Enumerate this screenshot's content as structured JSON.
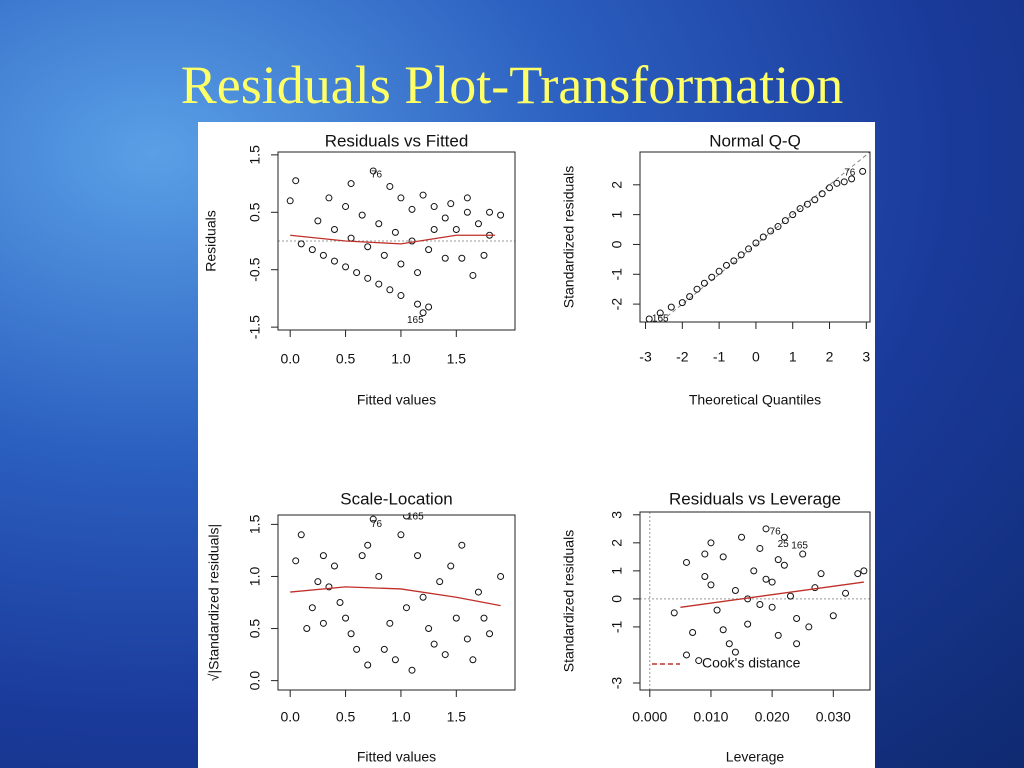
{
  "title": "Residuals Plot-Transformation",
  "chart_data": [
    {
      "type": "scatter",
      "title": "Residuals vs Fitted",
      "xlabel": "Fitted values",
      "ylabel": "Residuals",
      "xlim": [
        -0.11,
        2.03
      ],
      "ylim": [
        -1.55,
        1.55
      ],
      "xticks": [
        {
          "value": 0,
          "label": "0.0"
        },
        0.5,
        {
          "value": 1,
          "label": "1.0"
        },
        1.5
      ],
      "yticks": [
        -1.5,
        -0.5,
        0.5,
        1.5
      ],
      "hline": 0,
      "x": [
        0.1,
        0.2,
        0.3,
        0.4,
        0.5,
        0.6,
        0.7,
        0.8,
        0.9,
        1.0,
        0.25,
        0.4,
        0.55,
        0.7,
        0.85,
        1.0,
        1.15,
        0.35,
        0.5,
        0.65,
        0.8,
        0.95,
        1.1,
        1.25,
        1.4,
        0.0,
        0.05,
        0.55,
        0.75,
        0.9,
        1.0,
        1.1,
        1.2,
        1.3,
        1.4,
        1.5,
        1.6,
        1.7,
        1.8,
        1.9,
        1.55,
        1.65,
        1.75,
        1.15,
        1.2,
        1.25,
        1.3,
        1.45,
        1.6,
        1.8
      ],
      "y": [
        -0.05,
        -0.15,
        -0.25,
        -0.35,
        -0.45,
        -0.55,
        -0.65,
        -0.75,
        -0.85,
        -0.95,
        0.35,
        0.2,
        0.05,
        -0.1,
        -0.25,
        -0.4,
        -0.55,
        0.75,
        0.6,
        0.45,
        0.3,
        0.15,
        0.0,
        -0.15,
        -0.3,
        0.7,
        1.05,
        1.0,
        1.22,
        0.95,
        0.75,
        0.55,
        0.8,
        0.6,
        0.4,
        0.2,
        0.5,
        0.3,
        0.1,
        0.45,
        -0.3,
        -0.6,
        -0.25,
        -1.1,
        -1.25,
        -1.15,
        0.2,
        0.65,
        0.75,
        0.5
      ],
      "smooth": {
        "color": "#c0302a",
        "x": [
          0,
          0.5,
          1.0,
          1.5,
          1.85
        ],
        "y": [
          0.1,
          0.0,
          -0.05,
          0.1,
          0.1
        ]
      },
      "point_labels": [
        {
          "text": "76",
          "x": 0.78,
          "y": 1.15
        },
        {
          "text": "165",
          "x": 1.13,
          "y": -1.38
        }
      ]
    },
    {
      "type": "scatter",
      "title": "Normal Q-Q",
      "xlabel": "Theoretical Quantiles",
      "ylabel": "Standardized residuals",
      "xlim": [
        -3.15,
        3.1
      ],
      "ylim": [
        -2.6,
        3.1
      ],
      "xticks": [
        -3,
        -2,
        -1,
        0,
        1,
        2,
        3
      ],
      "yticks": [
        -2,
        -1,
        0,
        1,
        2
      ],
      "diagonal": {
        "intercept": 0,
        "slope": 1
      },
      "x": [
        -2.9,
        -2.6,
        -2.3,
        -2.0,
        -1.8,
        -1.6,
        -1.4,
        -1.2,
        -1.0,
        -0.8,
        -0.6,
        -0.4,
        -0.2,
        0,
        0.2,
        0.4,
        0.6,
        0.8,
        1.0,
        1.2,
        1.4,
        1.6,
        1.8,
        2.0,
        2.2,
        2.4,
        2.6,
        2.9
      ],
      "y": [
        -2.5,
        -2.3,
        -2.1,
        -1.95,
        -1.75,
        -1.5,
        -1.3,
        -1.1,
        -0.9,
        -0.7,
        -0.55,
        -0.35,
        -0.15,
        0.05,
        0.25,
        0.45,
        0.6,
        0.8,
        1.0,
        1.2,
        1.35,
        1.5,
        1.7,
        1.9,
        2.05,
        2.1,
        2.2,
        2.45
      ],
      "point_labels": [
        {
          "text": "76",
          "x": 2.55,
          "y": 2.4
        },
        {
          "text": "165",
          "x": -2.6,
          "y": -2.5
        }
      ]
    },
    {
      "type": "scatter",
      "title": "Scale-Location",
      "xlabel": "Fitted values",
      "ylabel": "√|Standardized residuals|",
      "xlim": [
        -0.11,
        2.03
      ],
      "ylim": [
        -0.09,
        1.59
      ],
      "xticks": [
        {
          "value": 0,
          "label": "0.0"
        },
        0.5,
        {
          "value": 1,
          "label": "1.0"
        },
        1.5
      ],
      "yticks": [
        {
          "value": 0,
          "label": "0.0"
        },
        0.5,
        {
          "value": 1,
          "label": "1.0"
        },
        1.5
      ],
      "x": [
        0.05,
        0.1,
        0.15,
        0.2,
        0.25,
        0.3,
        0.35,
        0.4,
        0.45,
        0.5,
        0.55,
        0.6,
        0.65,
        0.7,
        0.75,
        0.8,
        0.85,
        0.9,
        0.95,
        1.0,
        1.05,
        1.1,
        1.15,
        1.2,
        1.25,
        1.3,
        1.35,
        1.4,
        1.45,
        1.5,
        1.55,
        1.6,
        1.65,
        1.7,
        1.75,
        1.8,
        1.9,
        0.7,
        1.05,
        0.3
      ],
      "y": [
        1.15,
        1.4,
        0.5,
        0.7,
        0.95,
        1.2,
        0.9,
        1.1,
        0.75,
        0.6,
        0.45,
        0.3,
        1.2,
        0.15,
        1.55,
        1.0,
        0.3,
        0.55,
        0.2,
        1.4,
        0.7,
        0.1,
        1.2,
        0.8,
        0.5,
        0.35,
        0.95,
        0.25,
        1.1,
        0.6,
        1.3,
        0.4,
        0.2,
        0.85,
        0.6,
        0.45,
        1.0,
        1.3,
        1.58,
        0.55
      ],
      "smooth": {
        "color": "#c0302a",
        "x": [
          0,
          0.5,
          1.0,
          1.5,
          1.9
        ],
        "y": [
          0.85,
          0.9,
          0.88,
          0.8,
          0.72
        ]
      },
      "point_labels": [
        {
          "text": "76",
          "x": 0.78,
          "y": 1.5
        },
        {
          "text": "165",
          "x": 1.13,
          "y": 1.57
        }
      ]
    },
    {
      "type": "scatter",
      "title": "Residuals vs Leverage",
      "xlabel": "Leverage",
      "ylabel": "Standardized residuals",
      "xlim": [
        -0.0016,
        0.036
      ],
      "ylim": [
        -3.25,
        3.1
      ],
      "xticks": [
        {
          "value": 0,
          "label": "0.000"
        },
        {
          "value": 0.01,
          "label": "0.010"
        },
        {
          "value": 0.02,
          "label": "0.020"
        },
        {
          "value": 0.03,
          "label": "0.030"
        }
      ],
      "yticks": [
        -3,
        -1,
        0,
        1,
        2,
        3
      ],
      "hline": 0,
      "vline": 0,
      "x": [
        0.004,
        0.006,
        0.007,
        0.008,
        0.009,
        0.01,
        0.011,
        0.012,
        0.013,
        0.014,
        0.015,
        0.016,
        0.017,
        0.018,
        0.019,
        0.02,
        0.021,
        0.022,
        0.023,
        0.024,
        0.025,
        0.026,
        0.027,
        0.028,
        0.03,
        0.032,
        0.034,
        0.035,
        0.006,
        0.01,
        0.014,
        0.018,
        0.02,
        0.022,
        0.009,
        0.016,
        0.024,
        0.012,
        0.019,
        0.021
      ],
      "y": [
        -0.5,
        1.3,
        -1.2,
        -2.2,
        0.8,
        2.0,
        -0.4,
        1.5,
        -1.6,
        0.3,
        2.2,
        -0.9,
        1.0,
        -0.2,
        2.5,
        0.6,
        -1.3,
        2.2,
        0.1,
        -0.7,
        1.6,
        -1.0,
        0.4,
        0.9,
        -0.6,
        0.2,
        0.9,
        1.0,
        -2.0,
        0.5,
        -1.9,
        1.8,
        -0.3,
        1.2,
        1.6,
        0.0,
        -1.6,
        -1.1,
        0.7,
        1.4
      ],
      "smooth": {
        "color": "#c0302a",
        "x": [
          0.005,
          0.035
        ],
        "y": [
          -0.3,
          0.6
        ]
      },
      "legend": {
        "text": "Cook's distance",
        "color": "#c0302a",
        "corner": "bottom-left"
      },
      "point_labels": [
        {
          "text": "76",
          "x": 0.0205,
          "y": 2.4
        },
        {
          "text": "25",
          "x": 0.0218,
          "y": 1.95
        },
        {
          "text": "165",
          "x": 0.0245,
          "y": 1.9
        }
      ]
    }
  ]
}
